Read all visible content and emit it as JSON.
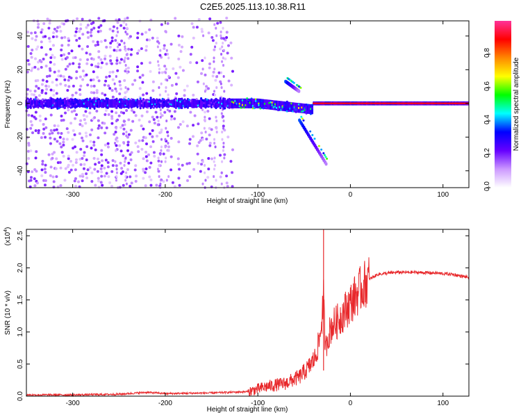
{
  "title": "C2E5.2025.113.10.38.R11",
  "chart_data": [
    {
      "type": "heatmap",
      "xlabel": "Height of straight line (km)",
      "ylabel": "Frequency (Hz)",
      "xlim": [
        -350,
        128
      ],
      "ylim": [
        -50,
        49
      ],
      "xticks": [
        -300,
        -200,
        -100,
        0,
        100
      ],
      "yticks": [
        -40,
        -20,
        0,
        20,
        40
      ],
      "colorbar": {
        "label": "Normalized spectral amplitude",
        "ticks": [
          "0.0",
          "0.2",
          "0.4",
          "0.6",
          "0.8"
        ],
        "tick_values": [
          0.0,
          0.2,
          0.4,
          0.6,
          0.8
        ],
        "range": [
          0,
          1
        ],
        "colormap": [
          "#ffffff",
          "#cc99ff",
          "#6600ff",
          "#0000ff",
          "#00ffff",
          "#00ff00",
          "#ffff00",
          "#ff8800",
          "#ff0000",
          "#ff3399"
        ]
      },
      "features": [
        {
          "name": "carrier",
          "x": [
            -350,
            128
          ],
          "freq_hz": 0
        },
        {
          "name": "upper sideband",
          "x": [
            -70,
            -55
          ],
          "freq_hz": [
            13,
            7
          ]
        },
        {
          "name": "lower sideband",
          "x": [
            -55,
            -25
          ],
          "freq_hz": [
            -10,
            -37
          ]
        }
      ]
    },
    {
      "type": "line",
      "xlabel": "Height of straight line (km)",
      "ylabel": "SNR (10 * v/v)",
      "yscale_label": "(x10",
      "yscale_exp": "4",
      "y_multiplier": 10000,
      "xlim": [
        -350,
        128
      ],
      "ylim": [
        0,
        2.6
      ],
      "xticks": [
        -300,
        -200,
        -100,
        0,
        100
      ],
      "yticks": [
        "0.0",
        "0.5",
        "1.0",
        "1.5",
        "2.0",
        "2.5"
      ],
      "ytick_values": [
        0,
        0.5,
        1.0,
        1.5,
        2.0,
        2.5
      ],
      "color": "#e8282b",
      "series": [
        {
          "x": [
            -350,
            -300,
            -250,
            -220,
            -200,
            -150,
            -110,
            -90,
            -70,
            -55,
            -45,
            -38,
            -33,
            -29,
            -27,
            -25,
            -20,
            -15,
            -10,
            -5,
            0,
            10,
            20,
            30,
            50,
            70,
            90,
            100,
            110,
            120,
            128
          ],
          "y": [
            0.02,
            0.02,
            0.03,
            0.06,
            0.04,
            0.05,
            0.07,
            0.15,
            0.2,
            0.3,
            0.45,
            0.6,
            0.9,
            1.5,
            0.7,
            0.9,
            1.1,
            1.15,
            1.25,
            1.35,
            1.45,
            1.65,
            1.82,
            1.9,
            1.93,
            1.93,
            1.92,
            1.91,
            1.9,
            1.87,
            1.85
          ]
        }
      ]
    }
  ]
}
